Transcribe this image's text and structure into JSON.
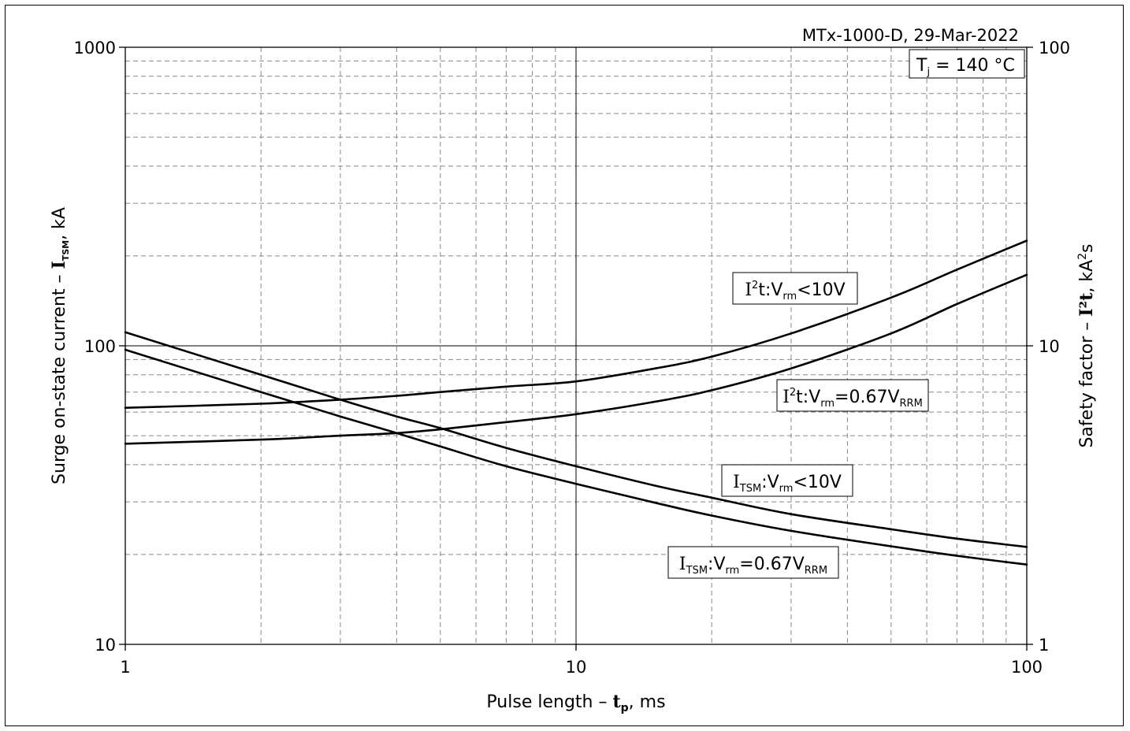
{
  "chart_data": {
    "type": "line",
    "title": "MTx-1000-D, 29-Mar-2022",
    "condition": {
      "symbol": "T",
      "sub": "j",
      "rest": " = 140 °C"
    },
    "x_axis": {
      "label_pre": "Pulse length – ",
      "label_sym": "t",
      "label_sub": "p",
      "label_post": ", ms",
      "scale": "log",
      "range": [
        1,
        100
      ],
      "ticks": [
        {
          "value": 1,
          "label": "1"
        },
        {
          "value": 10,
          "label": "10"
        },
        {
          "value": 100,
          "label": "100"
        }
      ]
    },
    "y_axis_left": {
      "label_pre": "Surge on-state current – ",
      "label_sym": "I",
      "label_sub": "TSM",
      "label_post": ", kA",
      "scale": "log",
      "range": [
        10,
        1000
      ],
      "ticks": [
        {
          "value": 10,
          "label": "10"
        },
        {
          "value": 100,
          "label": "100"
        },
        {
          "value": 1000,
          "label": "1000"
        }
      ]
    },
    "y_axis_right": {
      "label_pre": "Safety factor – ",
      "label_sym": "I²t",
      "label_post": ", kA",
      "label_sup": "2",
      "label_tail": "s",
      "scale": "log",
      "range": [
        1,
        100
      ],
      "ticks": [
        {
          "value": 1,
          "label": "1"
        },
        {
          "value": 10,
          "label": "10"
        },
        {
          "value": 100,
          "label": "100"
        }
      ]
    },
    "grid": true,
    "series": [
      {
        "name": "I²t:Vrm<10V",
        "axis": "right",
        "label_parts": [
          {
            "t": "I",
            "cls": "serif"
          },
          {
            "t": "2",
            "sup": true
          },
          {
            "t": "t:V"
          },
          {
            "t": "rm",
            "sub": true
          },
          {
            "t": "<10V"
          }
        ],
        "x": [
          1,
          2,
          3,
          4,
          5,
          7,
          10,
          15,
          20,
          30,
          50,
          70,
          100
        ],
        "y": [
          6.2,
          6.4,
          6.6,
          6.8,
          7.0,
          7.3,
          7.6,
          8.4,
          9.2,
          11.0,
          14.5,
          18.0,
          22.5
        ]
      },
      {
        "name": "I²t:Vrm=0.67VRRM",
        "axis": "right",
        "label_parts": [
          {
            "t": "I",
            "cls": "serif"
          },
          {
            "t": "2",
            "sup": true
          },
          {
            "t": "t:V"
          },
          {
            "t": "rm",
            "sub": true
          },
          {
            "t": "=0.67V"
          },
          {
            "t": "RRM",
            "sub": true
          }
        ],
        "x": [
          1,
          2,
          3,
          4,
          5,
          7,
          10,
          15,
          20,
          30,
          50,
          70,
          100
        ],
        "y": [
          4.7,
          4.85,
          5.0,
          5.1,
          5.25,
          5.55,
          5.9,
          6.5,
          7.1,
          8.4,
          11.0,
          13.8,
          17.3
        ]
      },
      {
        "name": "ITSM:Vrm<10V",
        "axis": "left",
        "label_parts": [
          {
            "t": "I",
            "cls": "serif"
          },
          {
            "t": "TSM",
            "sub": true
          },
          {
            "t": ":V"
          },
          {
            "t": "rm",
            "sub": true
          },
          {
            "t": "<10V"
          }
        ],
        "x": [
          1,
          2,
          3,
          4,
          5,
          7,
          10,
          15,
          20,
          30,
          50,
          70,
          100
        ],
        "y": [
          111,
          80,
          66,
          58,
          53,
          45.5,
          39.5,
          34,
          31,
          27.3,
          24.3,
          22.6,
          21.2
        ]
      },
      {
        "name": "ITSM:Vrm=0.67VRRM",
        "axis": "left",
        "label_parts": [
          {
            "t": "I",
            "cls": "serif"
          },
          {
            "t": "TSM",
            "sub": true
          },
          {
            "t": ":V"
          },
          {
            "t": "rm",
            "sub": true
          },
          {
            "t": "=0.67V"
          },
          {
            "t": "RRM",
            "sub": true
          }
        ],
        "x": [
          1,
          2,
          3,
          4,
          5,
          7,
          10,
          15,
          20,
          30,
          50,
          70,
          100
        ],
        "y": [
          97,
          70,
          58,
          51,
          46,
          39.5,
          34.5,
          29.8,
          27,
          24,
          21.3,
          19.8,
          18.5
        ]
      }
    ]
  }
}
